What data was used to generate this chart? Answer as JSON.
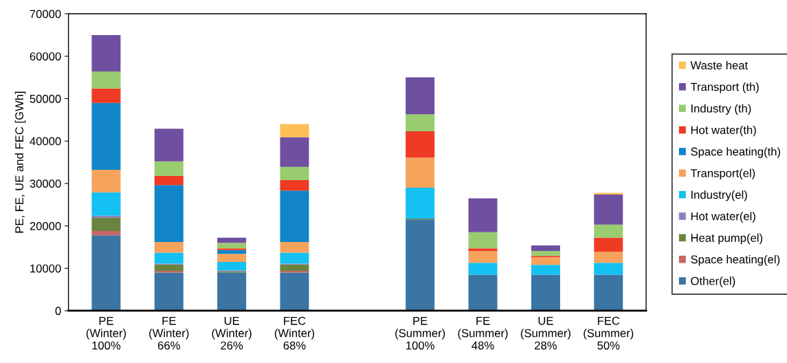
{
  "chart_data": {
    "type": "bar",
    "stacked": true,
    "ylabel": "PE, FE, UE and FEC [GWh]",
    "categories": [
      "PE\n(Winter)\n100%",
      "FE\n(Winter)\n66%",
      "UE\n(Winter)\n26%",
      "FEC\n(Winter)\n68%",
      null,
      "PE\n(Summer)\n100%",
      "FE\n(Summer)\n48%",
      "UE\n(Summer)\n28%",
      "FEC\n(Summer)\n50%"
    ],
    "series": [
      {
        "name": "Other(el)",
        "color": "#3a75a3",
        "values": [
          17800,
          9000,
          9000,
          9000,
          null,
          21500,
          8500,
          8500,
          8500
        ]
      },
      {
        "name": "Space heating(el)",
        "color": "#c96565",
        "values": [
          1000,
          400,
          null,
          400,
          null,
          0,
          0,
          0,
          0
        ]
      },
      {
        "name": "Heat pump(el)",
        "color": "#6a8440",
        "values": [
          3200,
          1500,
          300,
          1500,
          null,
          200,
          0,
          0,
          0
        ]
      },
      {
        "name": "Hot water(el)",
        "color": "#8e7cc3",
        "values": [
          400,
          200,
          200,
          200,
          null,
          0,
          0,
          0,
          0
        ]
      },
      {
        "name": "Industry(el)",
        "color": "#14c1f2",
        "values": [
          5500,
          2600,
          2000,
          2600,
          null,
          7300,
          2800,
          2300,
          2800
        ]
      },
      {
        "name": "Transport(el)",
        "color": "#f7a35c",
        "values": [
          5300,
          2500,
          1900,
          2500,
          null,
          7100,
          2800,
          1800,
          2600
        ]
      },
      {
        "name": "Space heating(th)",
        "color": "#1185c8",
        "values": [
          15800,
          13400,
          900,
          12100,
          null,
          0,
          0,
          0,
          0
        ]
      },
      {
        "name": "Hot water(th)",
        "color": "#ef3a24",
        "values": [
          3400,
          2200,
          400,
          2500,
          null,
          6200,
          600,
          300,
          3300
        ]
      },
      {
        "name": "Industry (th)",
        "color": "#98cc6f",
        "values": [
          4000,
          3400,
          1300,
          3100,
          null,
          4000,
          3800,
          1200,
          3100
        ]
      },
      {
        "name": "Transport (th)",
        "color": "#6f4fa0",
        "values": [
          8600,
          7700,
          1200,
          7000,
          null,
          8700,
          8000,
          1300,
          7100
        ]
      },
      {
        "name": "Waste heat",
        "color": "#fcbf55",
        "values": [
          0,
          0,
          0,
          3100,
          null,
          0,
          0,
          0,
          400
        ]
      }
    ],
    "ylim": [
      0,
      70000
    ],
    "yticks": [
      0,
      10000,
      20000,
      30000,
      40000,
      50000,
      60000,
      70000
    ],
    "grid": false,
    "legend": "right"
  }
}
